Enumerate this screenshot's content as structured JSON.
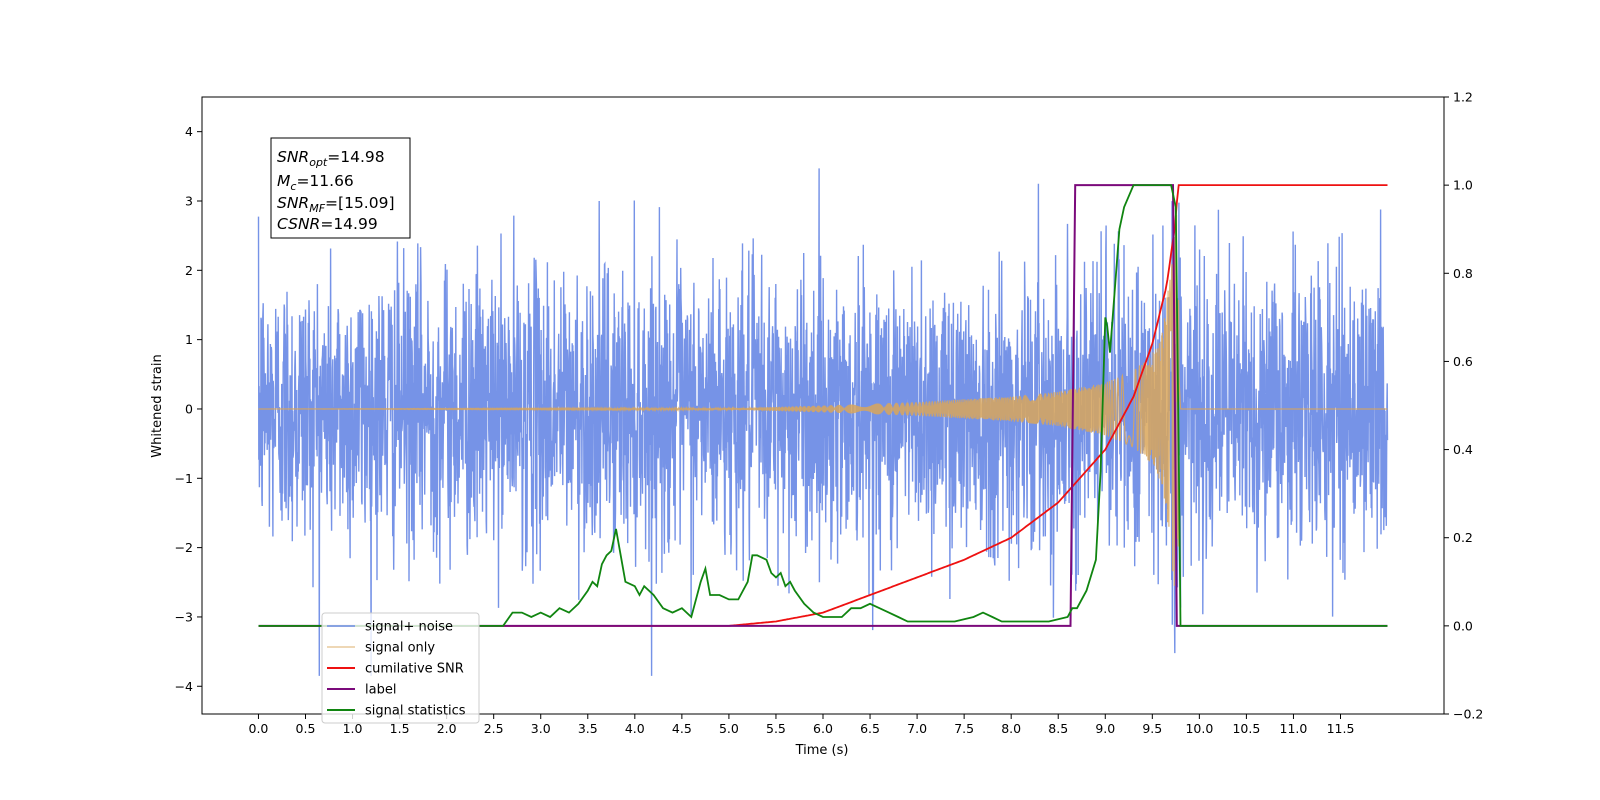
{
  "chart_data": {
    "type": "line",
    "xlabel": "Time (s)",
    "ylabel": "Whitened strain",
    "xlim": [
      -0.6,
      12.6
    ],
    "ylim_left": [
      -4.4,
      4.5
    ],
    "ylim_right": [
      -0.2,
      1.2
    ],
    "xticks": [
      "0.0",
      "0.5",
      "1.0",
      "1.5",
      "2.0",
      "2.5",
      "3.0",
      "3.5",
      "4.0",
      "4.5",
      "5.0",
      "5.5",
      "6.0",
      "6.5",
      "7.0",
      "7.5",
      "8.0",
      "8.5",
      "9.0",
      "9.5",
      "10.0",
      "10.5",
      "11.0",
      "11.5"
    ],
    "yticks_left": [
      "−4",
      "−3",
      "−2",
      "−1",
      "0",
      "1",
      "2",
      "3",
      "4"
    ],
    "yticks_right": [
      "−0.2",
      "0.0",
      "0.2",
      "0.4",
      "0.6",
      "0.8",
      "1.0",
      "1.2"
    ],
    "grid": false,
    "legend_position": "bottom-left",
    "annotation": {
      "snr_opt_value": "=14.98",
      "mc_value": "=11.66",
      "snr_mf_value": "=[15.09]",
      "csnr_value": "=14.99"
    },
    "series": [
      {
        "name": "signal+ noise",
        "color": "#6f8de6",
        "axis": "left",
        "description": "white noise of std approx 1 over 0 to 12 s, with an embedded chirp"
      },
      {
        "name": "signal only",
        "color": "#d9a65b",
        "axis": "left",
        "chirp_envelope": {
          "t": [
            0,
            5.0,
            6.0,
            7.0,
            8.0,
            8.5,
            9.0,
            9.3,
            9.5,
            9.6,
            9.7,
            9.76,
            9.8
          ],
          "amp": [
            0.0,
            0.01,
            0.05,
            0.1,
            0.18,
            0.25,
            0.38,
            0.55,
            0.8,
            1.1,
            2.0,
            3.3,
            0.0
          ]
        }
      },
      {
        "name": "cumilative SNR",
        "color": "#ee1111",
        "axis": "right",
        "x": [
          0,
          5.0,
          5.5,
          6.0,
          6.5,
          7.0,
          7.5,
          8.0,
          8.5,
          9.0,
          9.3,
          9.5,
          9.65,
          9.75,
          9.77,
          12.0
        ],
        "y": [
          0,
          0,
          0.01,
          0.03,
          0.07,
          0.11,
          0.15,
          0.2,
          0.28,
          0.4,
          0.52,
          0.64,
          0.77,
          0.92,
          1.0,
          1.0
        ]
      },
      {
        "name": "label",
        "color": "#7b0a7b",
        "axis": "right",
        "x": [
          0,
          8.63,
          8.68,
          9.72,
          9.76,
          12.0
        ],
        "y": [
          0,
          0,
          1,
          1,
          0,
          0
        ]
      },
      {
        "name": "signal statistics",
        "color": "#108510",
        "axis": "right",
        "x": [
          0,
          2.6,
          2.7,
          2.8,
          2.9,
          3.0,
          3.1,
          3.2,
          3.3,
          3.4,
          3.5,
          3.55,
          3.6,
          3.65,
          3.7,
          3.75,
          3.8,
          3.85,
          3.9,
          4.0,
          4.05,
          4.1,
          4.2,
          4.3,
          4.4,
          4.5,
          4.6,
          4.7,
          4.75,
          4.8,
          4.9,
          5.0,
          5.1,
          5.2,
          5.25,
          5.3,
          5.4,
          5.45,
          5.5,
          5.55,
          5.6,
          5.65,
          5.7,
          5.8,
          5.9,
          6.0,
          6.1,
          6.2,
          6.3,
          6.4,
          6.5,
          6.6,
          6.7,
          6.8,
          6.9,
          7.0,
          7.2,
          7.4,
          7.6,
          7.7,
          7.8,
          7.9,
          8.0,
          8.2,
          8.4,
          8.6,
          8.65,
          8.7,
          8.8,
          8.9,
          8.95,
          9.0,
          9.02,
          9.05,
          9.1,
          9.15,
          9.2,
          9.3,
          9.4,
          9.6,
          9.65,
          9.7,
          9.75,
          9.78,
          9.8,
          12.0
        ],
        "y": [
          0,
          0,
          0.03,
          0.03,
          0.02,
          0.03,
          0.02,
          0.04,
          0.03,
          0.05,
          0.08,
          0.1,
          0.09,
          0.14,
          0.16,
          0.17,
          0.22,
          0.16,
          0.1,
          0.09,
          0.07,
          0.09,
          0.07,
          0.04,
          0.03,
          0.04,
          0.02,
          0.1,
          0.13,
          0.07,
          0.07,
          0.06,
          0.06,
          0.1,
          0.16,
          0.16,
          0.15,
          0.12,
          0.11,
          0.12,
          0.09,
          0.1,
          0.08,
          0.05,
          0.03,
          0.02,
          0.02,
          0.02,
          0.04,
          0.04,
          0.05,
          0.04,
          0.03,
          0.02,
          0.01,
          0.01,
          0.01,
          0.01,
          0.02,
          0.03,
          0.02,
          0.01,
          0.01,
          0.01,
          0.01,
          0.02,
          0.04,
          0.04,
          0.08,
          0.15,
          0.35,
          0.7,
          0.68,
          0.62,
          0.76,
          0.9,
          0.95,
          1.0,
          1.0,
          1.0,
          1.0,
          1.0,
          0.95,
          0.4,
          0.0,
          0.0
        ]
      }
    ]
  }
}
